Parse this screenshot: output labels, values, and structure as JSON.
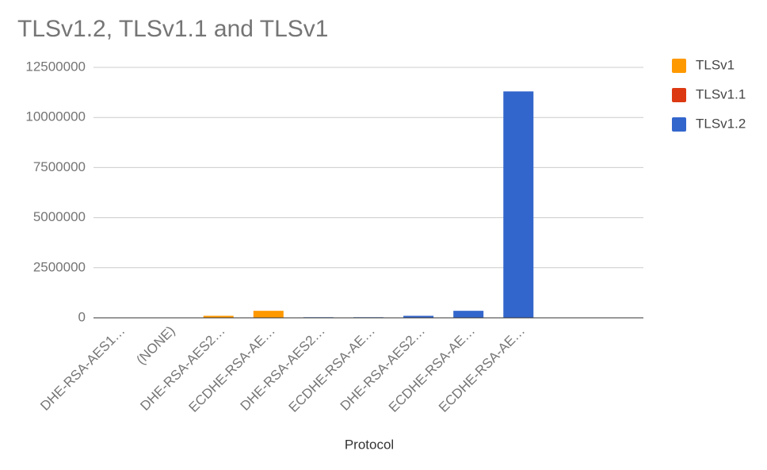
{
  "chart_data": {
    "type": "bar",
    "stacked": true,
    "title": "TLSv1.2, TLSv1.1 and TLSv1",
    "x_label": "Protocol",
    "categories": [
      "DHE-RSA-AES1…",
      "(NONE)",
      "DHE-RSA-AES2…",
      "ECDHE-RSA-AE…",
      "DHE-RSA-AES2…",
      "ECDHE-RSA-AE…",
      "DHE-RSA-AES2…",
      "ECDHE-RSA-AE…",
      "ECDHE-RSA-AE…",
      null,
      null
    ],
    "series": [
      {
        "name": "TLSv1",
        "color": "#ff9900",
        "values": [
          null,
          null,
          100000,
          350000,
          null,
          null,
          null,
          null,
          null,
          null,
          null
        ]
      },
      {
        "name": "TLSv1.1",
        "color": "#dc3912",
        "values": [
          null,
          null,
          null,
          null,
          null,
          null,
          null,
          null,
          null,
          null,
          null
        ]
      },
      {
        "name": "TLSv1.2",
        "color": "#3366cc",
        "values": [
          null,
          null,
          null,
          null,
          30000,
          30000,
          100000,
          350000,
          11300000,
          null,
          null
        ]
      }
    ],
    "ylim": [
      0,
      12500000
    ],
    "yticks": [
      0,
      2500000,
      5000000,
      7500000,
      10000000,
      12500000
    ],
    "grid": true,
    "legend": "right"
  }
}
